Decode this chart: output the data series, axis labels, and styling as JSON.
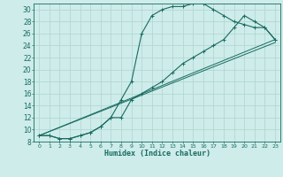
{
  "title": "",
  "xlabel": "Humidex (Indice chaleur)",
  "bg_color": "#cdecea",
  "grid_color": "#b0d4d0",
  "line_color": "#1a6b60",
  "spine_color": "#1a6b60",
  "xlim": [
    -0.5,
    23.5
  ],
  "ylim": [
    8,
    31
  ],
  "xticks": [
    0,
    1,
    2,
    3,
    4,
    5,
    6,
    7,
    8,
    9,
    10,
    11,
    12,
    13,
    14,
    15,
    16,
    17,
    18,
    19,
    20,
    21,
    22,
    23
  ],
  "yticks": [
    8,
    10,
    12,
    14,
    16,
    18,
    20,
    22,
    24,
    26,
    28,
    30
  ],
  "curve1_x": [
    0,
    1,
    2,
    3,
    4,
    5,
    6,
    7,
    8,
    9,
    10,
    11,
    12,
    13,
    14,
    15,
    16,
    17,
    18,
    19,
    20,
    21,
    22,
    23
  ],
  "curve1_y": [
    9,
    9,
    8.5,
    8.5,
    9,
    9.5,
    10.5,
    12,
    15,
    18,
    26,
    29,
    30,
    30.5,
    30.5,
    31,
    31,
    30,
    29,
    28,
    27.5,
    27,
    27,
    25
  ],
  "curve2_x": [
    0,
    1,
    2,
    3,
    4,
    5,
    6,
    7,
    8,
    9,
    10,
    11,
    12,
    13,
    14,
    15,
    16,
    17,
    18,
    19,
    20,
    21,
    22,
    23
  ],
  "curve2_y": [
    9,
    9,
    8.5,
    8.5,
    9,
    9.5,
    10.5,
    12,
    12,
    15,
    16,
    17,
    18,
    19.5,
    21,
    22,
    23,
    24,
    25,
    27,
    29,
    28,
    27,
    25
  ],
  "line1_x": [
    0,
    23
  ],
  "line1_y": [
    9,
    25
  ],
  "line2_x": [
    0,
    23
  ],
  "line2_y": [
    9,
    24.5
  ]
}
